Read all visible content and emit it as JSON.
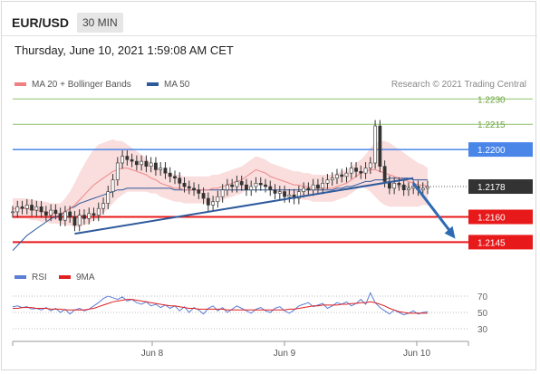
{
  "header": {
    "symbol": "EUR/USD",
    "timeframe": "30 MIN"
  },
  "timestamp": "Thursday, June 10, 2021 1:59:08 AM CET",
  "legend": {
    "ma20": {
      "label": "MA 20 + Bollinger Bands",
      "color": "#f08080"
    },
    "ma50": {
      "label": "MA 50",
      "color": "#2e5a9c"
    }
  },
  "credit": "Research © 2021 Trading Central",
  "rsi_legend": {
    "rsi": {
      "label": "RSI",
      "color": "#5b7fd6"
    },
    "ma9": {
      "label": "9MA",
      "color": "#e02020"
    }
  },
  "chart_data": {
    "type": "line",
    "price_axis": {
      "range": [
        1.2135,
        1.2235
      ]
    },
    "levels": [
      {
        "value": 1.223,
        "label": "1.2230",
        "color": "#8dc26f",
        "style": "thin-text"
      },
      {
        "value": 1.2215,
        "label": "1.2215",
        "color": "#8dc26f",
        "style": "thin-text"
      },
      {
        "value": 1.22,
        "label": "1.2200",
        "color": "#4a86e8",
        "style": "badge"
      },
      {
        "value": 1.2178,
        "label": "1.2178",
        "color": "#333333",
        "style": "current"
      },
      {
        "value": 1.216,
        "label": "1.2160",
        "color": "#e8191a",
        "style": "badge"
      },
      {
        "value": 1.2145,
        "label": "1.2145",
        "color": "#e8191a",
        "style": "badge"
      }
    ],
    "x_ticks": [
      "Jun 8",
      "Jun 9",
      "Jun 10"
    ],
    "close_series": [
      1.2163,
      1.2166,
      1.2165,
      1.2167,
      1.2164,
      1.2166,
      1.2163,
      1.2161,
      1.2164,
      1.2162,
      1.2158,
      1.2163,
      1.216,
      1.2155,
      1.2161,
      1.2159,
      1.2162,
      1.2161,
      1.2165,
      1.2168,
      1.2175,
      1.2182,
      1.2192,
      1.2196,
      1.2194,
      1.2193,
      1.2191,
      1.2193,
      1.219,
      1.2192,
      1.2188,
      1.2189,
      1.2186,
      1.2184,
      1.2183,
      1.218,
      1.2178,
      1.2177,
      1.2176,
      1.2174,
      1.2171,
      1.2167,
      1.2169,
      1.2172,
      1.2176,
      1.2179,
      1.2178,
      1.2181,
      1.2179,
      1.2176,
      1.2178,
      1.218,
      1.2179,
      1.2178,
      1.2176,
      1.2174,
      1.2175,
      1.2172,
      1.2173,
      1.2171,
      1.2175,
      1.2177,
      1.2176,
      1.2179,
      1.2177,
      1.218,
      1.2182,
      1.2183,
      1.2185,
      1.2184,
      1.2186,
      1.2189,
      1.2187,
      1.2186,
      1.2189,
      1.2192,
      1.2214,
      1.219,
      1.2181,
      1.2177,
      1.218,
      1.2179,
      1.2176,
      1.2177,
      1.2178,
      1.2176,
      1.2177,
      1.2178
    ],
    "ma20_series": [
      1.2165,
      1.2165,
      1.2165,
      1.2165,
      1.2164,
      1.2164,
      1.2163,
      1.2163,
      1.2162,
      1.2162,
      1.2162,
      1.2163,
      1.2165,
      1.2167,
      1.217,
      1.2173,
      1.2176,
      1.2179,
      1.2181,
      1.2183,
      1.2185,
      1.2187,
      1.2188,
      1.2189,
      1.2189,
      1.2188,
      1.2187,
      1.2186,
      1.2185,
      1.2183,
      1.2182,
      1.218,
      1.2179,
      1.2178,
      1.2177,
      1.2177,
      1.2176,
      1.2176,
      1.2176,
      1.2176,
      1.2176,
      1.2176,
      1.2177,
      1.2177,
      1.2178,
      1.2179,
      1.218,
      1.2181,
      1.2182,
      1.2184,
      1.2186,
      1.2188,
      1.2187,
      1.2186,
      1.2184,
      1.2183,
      1.2182,
      1.2181,
      1.218,
      1.2179,
      1.2179,
      1.2178,
      1.2178,
      1.2177,
      1.2177,
      1.2177,
      1.2177,
      1.2177,
      1.2178,
      1.2179,
      1.218,
      1.2182,
      1.2184,
      1.2186,
      1.2187,
      1.2188,
      1.2188,
      1.2187,
      1.2186,
      1.2185,
      1.2184,
      1.2183,
      1.2182,
      1.2181,
      1.218,
      1.2179,
      1.2179,
      1.2178
    ],
    "bb_width": [
      0.0006,
      0.0006,
      0.0006,
      0.0006,
      0.0006,
      0.0006,
      0.0006,
      0.0006,
      0.0006,
      0.0006,
      0.0006,
      0.0008,
      0.001,
      0.0013,
      0.0016,
      0.0018,
      0.002,
      0.0021,
      0.0022,
      0.0021,
      0.002,
      0.0019,
      0.0017,
      0.0016,
      0.0014,
      0.0013,
      0.0012,
      0.0011,
      0.001,
      0.0009,
      0.0008,
      0.0008,
      0.0008,
      0.0008,
      0.0008,
      0.0008,
      0.0008,
      0.0008,
      0.0008,
      0.0008,
      0.0008,
      0.0008,
      0.0008,
      0.0008,
      0.0008,
      0.0008,
      0.0008,
      0.0008,
      0.0008,
      0.0008,
      0.0008,
      0.0008,
      0.0008,
      0.0008,
      0.0008,
      0.0008,
      0.0008,
      0.0008,
      0.0008,
      0.0008,
      0.0008,
      0.0008,
      0.0008,
      0.0008,
      0.0008,
      0.0008,
      0.0008,
      0.0008,
      0.0008,
      0.0008,
      0.0008,
      0.0008,
      0.0008,
      0.0008,
      0.001,
      0.0013,
      0.0016,
      0.0018,
      0.0019,
      0.0019,
      0.0018,
      0.0017,
      0.0016,
      0.0015,
      0.0014,
      0.0013,
      0.0012,
      0.0011
    ],
    "ma50_series": [
      1.214,
      1.2143,
      1.2146,
      1.2149,
      1.2151,
      1.2153,
      1.2155,
      1.2157,
      1.2159,
      1.216,
      1.2161,
      1.2163,
      1.2165,
      1.2166,
      1.2168,
      1.2169,
      1.217,
      1.2171,
      1.2172,
      1.2173,
      1.2174,
      1.2175,
      1.2176,
      1.2176,
      1.2177,
      1.2177,
      1.2177,
      1.2177,
      1.2177,
      1.2177,
      1.2177,
      1.2177,
      1.2177,
      1.2177,
      1.2176,
      1.2176,
      1.2176,
      1.2176,
      1.2176,
      1.2176,
      1.2176,
      1.2176,
      1.2176,
      1.2176,
      1.2176,
      1.2176,
      1.2176,
      1.2176,
      1.2176,
      1.2176,
      1.2176,
      1.2176,
      1.2176,
      1.2176,
      1.2176,
      1.2176,
      1.2176,
      1.2176,
      1.2176,
      1.2176,
      1.2176,
      1.2176,
      1.2176,
      1.2176,
      1.2176,
      1.2176,
      1.2176,
      1.2176,
      1.2177,
      1.2177,
      1.2178,
      1.2178,
      1.2179,
      1.218,
      1.2181,
      1.2181,
      1.2182,
      1.2182,
      1.2182,
      1.2183,
      1.2183,
      1.2183,
      1.2183,
      1.2183,
      1.2182,
      1.2182,
      1.2182,
      1.2182
    ],
    "trendline": {
      "from": [
        13,
        1.215
      ],
      "to": [
        84,
        1.2183
      ]
    },
    "forecast_arrow": {
      "from": [
        84,
        1.218
      ],
      "to": [
        89,
        1.2147
      ]
    },
    "rsi_axis": {
      "ticks": [
        70,
        50,
        30
      ],
      "range": [
        20,
        80
      ]
    },
    "rsi_series": [
      57,
      58,
      56,
      57,
      54,
      55,
      53,
      56,
      52,
      55,
      50,
      54,
      48,
      53,
      55,
      52,
      54,
      58,
      62,
      67,
      70,
      68,
      66,
      69,
      64,
      66,
      62,
      60,
      63,
      58,
      60,
      56,
      59,
      55,
      58,
      52,
      57,
      50,
      56,
      53,
      48,
      55,
      58,
      52,
      56,
      50,
      54,
      58,
      55,
      52,
      49,
      54,
      56,
      52,
      50,
      55,
      57,
      52,
      49,
      53,
      58,
      60,
      62,
      57,
      59,
      61,
      55,
      58,
      62,
      60,
      63,
      58,
      61,
      66,
      60,
      74,
      62,
      56,
      52,
      48,
      53,
      50,
      47,
      49,
      52,
      48,
      50,
      51
    ],
    "ma9_series": [
      55,
      55,
      56,
      56,
      56,
      55,
      55,
      55,
      54,
      54,
      54,
      53,
      53,
      53,
      53,
      53,
      54,
      55,
      57,
      59,
      61,
      63,
      64,
      65,
      66,
      66,
      65,
      64,
      63,
      62,
      61,
      60,
      59,
      58,
      58,
      57,
      56,
      55,
      55,
      54,
      54,
      54,
      54,
      54,
      54,
      53,
      53,
      53,
      53,
      53,
      53,
      53,
      53,
      53,
      53,
      53,
      53,
      53,
      54,
      54,
      55,
      56,
      57,
      58,
      58,
      59,
      59,
      59,
      59,
      60,
      60,
      61,
      61,
      62,
      62,
      63,
      62,
      60,
      58,
      55,
      53,
      51,
      50,
      49,
      49,
      49,
      49,
      49
    ]
  }
}
